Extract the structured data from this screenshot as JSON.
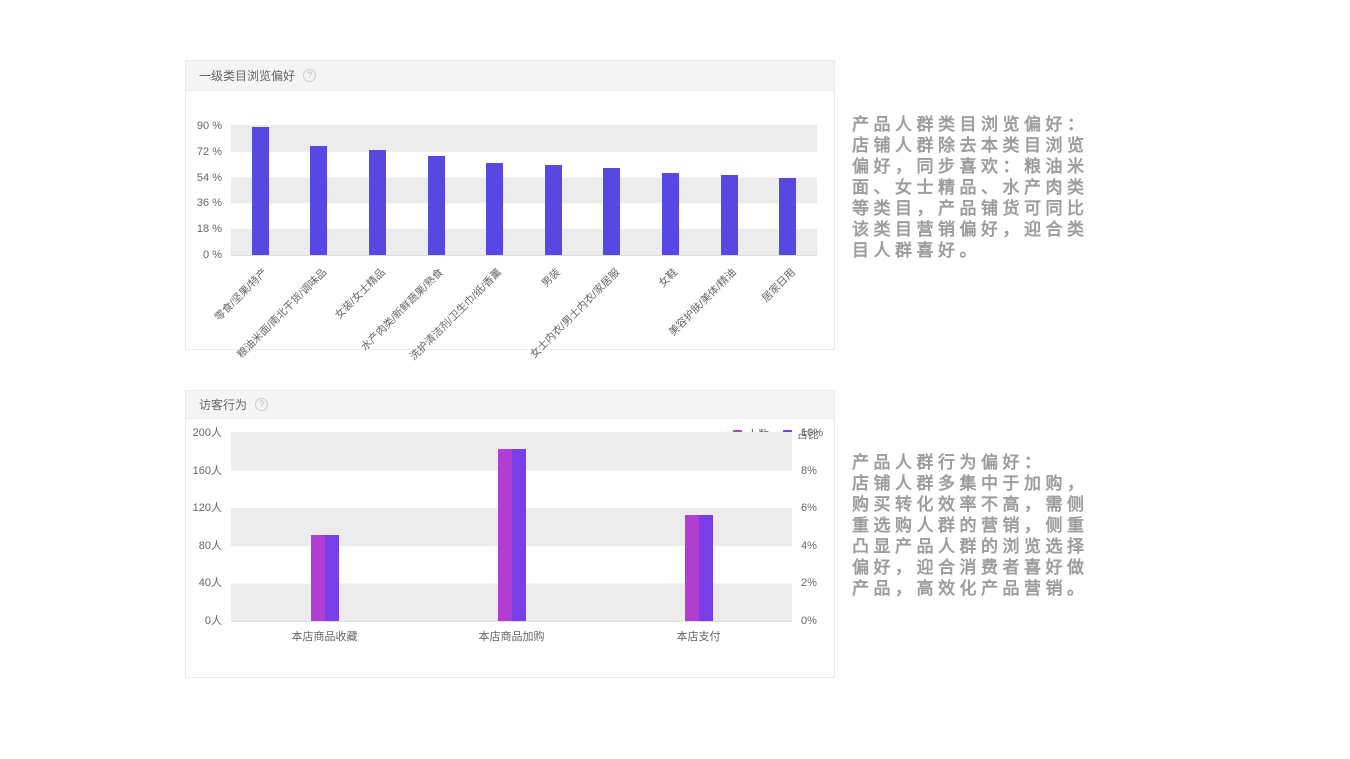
{
  "chart_data": [
    {
      "type": "bar",
      "title": "一级类目浏览偏好",
      "help_glyph": "?",
      "categories": [
        "零食/坚果/特产",
        "粮油米面/南北干货/调味品",
        "女装/女士精品",
        "水产肉类/新鲜蔬果/熟食",
        "洗护清洁剂/卫生巾/纸/香薰",
        "男装",
        "女士内衣/男士内衣/家居服",
        "女鞋",
        "美容护肤/美体/精油",
        "居家日用"
      ],
      "values": [
        89,
        76,
        73,
        69,
        64,
        63,
        61,
        57,
        56,
        54
      ],
      "unit": "%",
      "bar_color": "#5848e2",
      "ylim": [
        0,
        90
      ],
      "y_ticks": [
        {
          "label": "0 %",
          "value": 0
        },
        {
          "label": "18 %",
          "value": 18
        },
        {
          "label": "36 %",
          "value": 36
        },
        {
          "label": "54 %",
          "value": 54
        },
        {
          "label": "72 %",
          "value": 72
        },
        {
          "label": "90 %",
          "value": 90
        }
      ],
      "grid": "horizontal-bands",
      "band_colors": [
        "#ececec",
        "#ffffff"
      ]
    },
    {
      "type": "grouped-bar",
      "title": "访客行为",
      "help_glyph": "?",
      "categories": [
        "本店商品收藏",
        "本店商品加购",
        "本店支付"
      ],
      "series": [
        {
          "name": "人数",
          "color": "#b13ed3",
          "axis": "left",
          "values": [
            92,
            183,
            113
          ]
        },
        {
          "name": "占比",
          "color": "#7a3ee8",
          "axis": "right",
          "values": [
            4.6,
            9.15,
            5.65
          ]
        }
      ],
      "left_axis": {
        "max": 200,
        "ticks": [
          {
            "label": "0人",
            "value": 0
          },
          {
            "label": "40人",
            "value": 40
          },
          {
            "label": "80人",
            "value": 80
          },
          {
            "label": "120人",
            "value": 120
          },
          {
            "label": "160人",
            "value": 160
          },
          {
            "label": "200人",
            "value": 200
          }
        ]
      },
      "right_axis": {
        "max": 10,
        "ticks": [
          {
            "label": "0%",
            "value": 0
          },
          {
            "label": "2%",
            "value": 2
          },
          {
            "label": "4%",
            "value": 4
          },
          {
            "label": "6%",
            "value": 6
          },
          {
            "label": "8%",
            "value": 8
          },
          {
            "label": "10%",
            "value": 10
          }
        ]
      },
      "legend_position": "top-right",
      "grid": "horizontal-bands",
      "band_colors": [
        "#ececec",
        "#ffffff"
      ]
    }
  ],
  "notes": [
    {
      "lines": [
        "产品人群类目浏览偏好：",
        "店铺人群除去本类目浏览",
        "偏好，同步喜欢：粮油米",
        "面、女士精品、水产肉类",
        "等类目，产品铺货可同比",
        "该类目营销偏好，迎合类",
        "目人群喜好。"
      ]
    },
    {
      "lines": [
        "产品人群行为偏好：",
        "店铺人群多集中于加购，",
        "购买转化效率不高，需侧",
        "重选购人群的营销，侧重",
        "凸显产品人群的浏览选择",
        "偏好，迎合消费者喜好做",
        "产品，高效化产品营销。"
      ]
    }
  ]
}
